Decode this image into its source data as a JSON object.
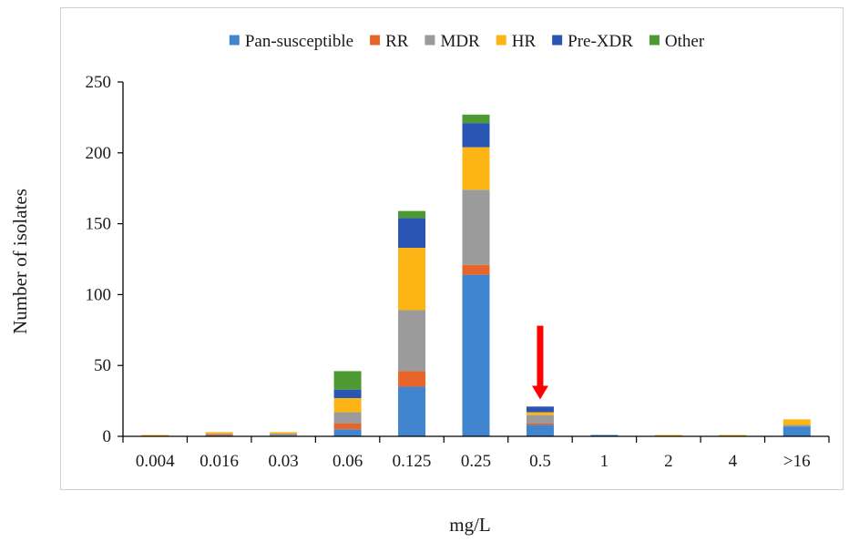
{
  "chart_data": {
    "type": "bar",
    "stacked": true,
    "title": "",
    "xlabel": "mg/L",
    "ylabel": "Number of isolates",
    "ylim": [
      0,
      250
    ],
    "yticks": [
      0,
      50,
      100,
      150,
      200,
      250
    ],
    "grid": false,
    "legend": "top",
    "categories": [
      "0.004",
      "0.016",
      "0.03",
      "0.06",
      "0.125",
      "0.25",
      "0.5",
      "1",
      "2",
      "4",
      ">16"
    ],
    "series": [
      {
        "name": "Pan-susceptible",
        "color": "#4285CF",
        "values": [
          0,
          0,
          0,
          5,
          35,
          114,
          8,
          1,
          0,
          0,
          7
        ]
      },
      {
        "name": "RR",
        "color": "#E8652A",
        "values": [
          0,
          1,
          0,
          4,
          11,
          7,
          1,
          0,
          0,
          0,
          0
        ]
      },
      {
        "name": "MDR",
        "color": "#9B9B9B",
        "values": [
          0,
          1,
          2,
          8,
          43,
          53,
          6,
          0,
          0,
          0,
          1
        ]
      },
      {
        "name": "HR",
        "color": "#FDB515",
        "values": [
          1,
          1,
          1,
          10,
          44,
          30,
          2,
          0,
          1,
          1,
          4
        ]
      },
      {
        "name": "Pre-XDR",
        "color": "#2A55B5",
        "values": [
          0,
          0,
          0,
          6,
          21,
          17,
          4,
          0,
          0,
          0,
          0
        ]
      },
      {
        "name": "Other",
        "color": "#4E9A32",
        "values": [
          0,
          0,
          0,
          13,
          5,
          6,
          0,
          0,
          0,
          0,
          0
        ]
      }
    ],
    "annotation": {
      "type": "arrow",
      "category": "0.5",
      "color": "#FF0000",
      "from_value": 78,
      "to_value": 26
    }
  }
}
